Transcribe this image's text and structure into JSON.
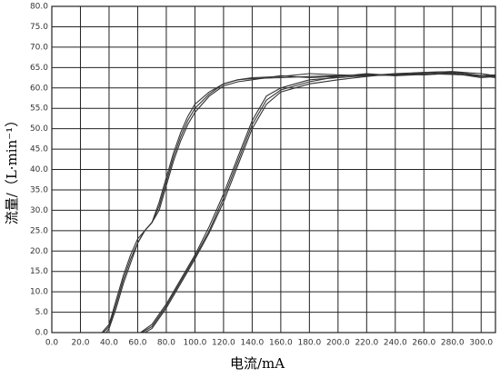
{
  "chart_data": {
    "type": "line",
    "x_label": "电流/mA",
    "y_label": "流量/（L·min⁻¹）",
    "color": "#333333",
    "grid": true,
    "xlim": [
      0,
      310
    ],
    "ylim": [
      0,
      80
    ],
    "xticks": [
      {
        "value": 0,
        "label": "0.0"
      },
      {
        "value": 20,
        "label": "20.0"
      },
      {
        "value": 40,
        "label": "40.0"
      },
      {
        "value": 60,
        "label": "60.0"
      },
      {
        "value": 80,
        "label": "80.0"
      },
      {
        "value": 100,
        "label": "100.0"
      },
      {
        "value": 120,
        "label": "120.0"
      },
      {
        "value": 140,
        "label": "140.0"
      },
      {
        "value": 160,
        "label": "160.0"
      },
      {
        "value": 180,
        "label": "180.0"
      },
      {
        "value": 200,
        "label": "200.0"
      },
      {
        "value": 220,
        "label": "220.0"
      },
      {
        "value": 240,
        "label": "240.0"
      },
      {
        "value": 260,
        "label": "260.0"
      },
      {
        "value": 280,
        "label": "280.0"
      },
      {
        "value": 300,
        "label": "300.0"
      }
    ],
    "yticks": [
      {
        "value": 0,
        "label": "0.0"
      },
      {
        "value": 5,
        "label": "5.0"
      },
      {
        "value": 10,
        "label": "10.0"
      },
      {
        "value": 15,
        "label": "15.0"
      },
      {
        "value": 20,
        "label": "20.0"
      },
      {
        "value": 25,
        "label": "25.0"
      },
      {
        "value": 30,
        "label": "30.0"
      },
      {
        "value": 35,
        "label": "35.0"
      },
      {
        "value": 40,
        "label": "40.0"
      },
      {
        "value": 45,
        "label": "45.0"
      },
      {
        "value": 50,
        "label": "50.0"
      },
      {
        "value": 55,
        "label": "55.0"
      },
      {
        "value": 60,
        "label": "60.0"
      },
      {
        "value": 65,
        "label": "65.0"
      },
      {
        "value": 70,
        "label": "70.0"
      },
      {
        "value": 75,
        "label": "75.0"
      },
      {
        "value": 80,
        "label": "80.0"
      }
    ],
    "series": [
      {
        "color": "#333333",
        "x": [
          35,
          40,
          45,
          50,
          55,
          60,
          65,
          70,
          75,
          80,
          85,
          90,
          95,
          100,
          110,
          120,
          130,
          140,
          160,
          180,
          200,
          220,
          240,
          260,
          280,
          300,
          310
        ],
        "values": [
          0,
          2,
          8,
          14,
          19,
          23,
          25,
          27,
          32,
          38,
          44,
          49,
          53,
          56,
          59,
          61,
          62,
          62.3,
          62.5,
          62.8,
          63,
          63.2,
          63.3,
          63.5,
          63.3,
          63,
          63.2
        ]
      },
      {
        "color": "#333333",
        "x": [
          36,
          40,
          45,
          50,
          55,
          60,
          65,
          70,
          75,
          80,
          85,
          90,
          95,
          100,
          110,
          120,
          130,
          140,
          160,
          180,
          200,
          220,
          240,
          260,
          280,
          300,
          310
        ],
        "values": [
          0,
          1.5,
          7,
          13,
          18,
          22,
          25,
          27,
          31,
          37,
          43,
          48,
          52,
          55,
          58.5,
          61,
          62,
          62.5,
          62.8,
          63.5,
          63.2,
          63,
          63.5,
          63.8,
          64,
          63,
          62.5
        ]
      },
      {
        "color": "#333333",
        "x": [
          38,
          40,
          45,
          50,
          55,
          60,
          65,
          70,
          75,
          80,
          85,
          90,
          95,
          100,
          110,
          120,
          130,
          140,
          160,
          180,
          200,
          220,
          240,
          260,
          280,
          300,
          310
        ],
        "values": [
          0,
          1,
          6,
          12,
          17,
          22,
          25,
          27,
          30,
          36,
          42,
          47,
          51,
          54,
          58,
          60.5,
          61.5,
          62,
          63,
          62.5,
          62.8,
          63.5,
          63,
          63.3,
          63.5,
          62.8,
          63
        ]
      },
      {
        "color": "#333333",
        "x": [
          62,
          70,
          80,
          90,
          100,
          110,
          120,
          130,
          140,
          150,
          160,
          170,
          180,
          200,
          220,
          240,
          260,
          280,
          300,
          310
        ],
        "values": [
          0,
          2,
          7,
          13,
          19,
          26,
          34,
          43,
          52,
          58,
          60,
          61,
          62,
          62.5,
          63,
          63.2,
          63.5,
          63.8,
          63,
          62.8
        ]
      },
      {
        "color": "#333333",
        "x": [
          63,
          70,
          80,
          90,
          100,
          110,
          120,
          130,
          140,
          150,
          160,
          170,
          180,
          200,
          220,
          240,
          260,
          280,
          300,
          310
        ],
        "values": [
          0,
          1.5,
          6.5,
          12.5,
          18.5,
          25,
          33,
          42,
          51,
          57,
          59.5,
          60.5,
          61.5,
          62.8,
          63.3,
          63,
          63.8,
          64,
          63.5,
          63
        ]
      },
      {
        "color": "#333333",
        "x": [
          65,
          70,
          80,
          90,
          100,
          110,
          120,
          130,
          140,
          150,
          160,
          170,
          180,
          200,
          220,
          240,
          260,
          280,
          300,
          310
        ],
        "values": [
          0,
          1,
          6,
          12,
          18,
          24.5,
          32,
          41,
          50,
          56,
          59,
          60,
          61,
          62,
          62.8,
          63.5,
          63.2,
          63.6,
          62.5,
          62.8
        ]
      }
    ]
  }
}
